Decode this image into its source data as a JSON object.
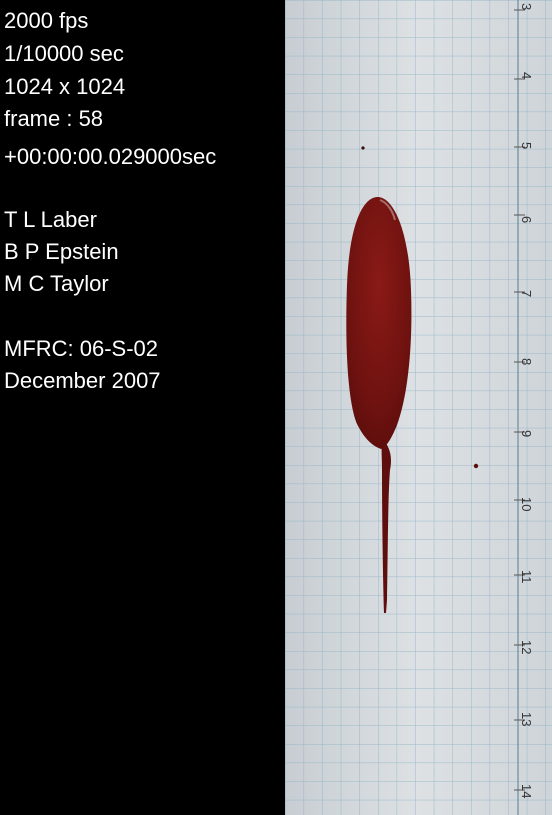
{
  "overlay": {
    "fps": "2000 fps",
    "shutter": "1/10000 sec",
    "resolution": "1024 x 1024",
    "frame": "frame : 58",
    "timestamp": "+00:00:00.029000sec",
    "author_1": "T L Laber",
    "author_2": "B P Epstein",
    "author_3": "M C Taylor",
    "case_id": "MFRC:  06-S-02",
    "date": "December 2007"
  },
  "ruler": {
    "labels": [
      "3",
      "4",
      "5",
      "6",
      "7",
      "8",
      "9",
      "10",
      "11",
      "12",
      "13",
      "14"
    ]
  },
  "colors": {
    "background": "#000000",
    "text": "#ffffff",
    "paper": "#d6dbde",
    "grid_line": "#7fa8bf",
    "stain": "#7a1412"
  }
}
